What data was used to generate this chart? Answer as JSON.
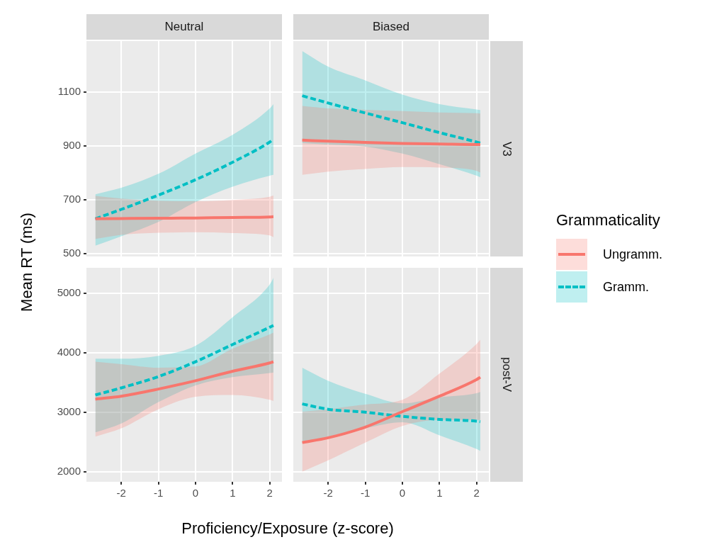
{
  "chart_data": [
    {
      "type": "line",
      "title": "Neutral",
      "ylabel": "Mean RT (ms)",
      "x": [
        -2.7,
        -2,
        -1,
        0,
        1,
        2,
        2.1
      ],
      "xlim": [
        -2.94,
        2.33
      ],
      "xticks": [
        -2,
        -1,
        0,
        1,
        2
      ],
      "ylim": [
        490,
        1290
      ],
      "yticks": [
        500,
        700,
        900,
        1100
      ],
      "tick_labels": "y",
      "grid": true,
      "series": [
        {
          "color": "#f8766d",
          "line_style": "solid",
          "values": [
            630,
            631,
            632,
            633,
            635,
            637,
            638
          ],
          "lower": [
            555,
            570,
            578,
            580,
            577,
            568,
            562
          ],
          "upper": [
            715,
            705,
            697,
            695,
            700,
            712,
            716
          ]
        },
        {
          "color": "#00bfc4",
          "line_style": "dashed",
          "values": [
            630,
            665,
            718,
            775,
            840,
            915,
            925
          ],
          "lower": [
            530,
            565,
            618,
            692,
            749,
            790,
            793
          ],
          "upper": [
            721,
            745,
            797,
            872,
            942,
            1040,
            1056
          ]
        }
      ]
    },
    {
      "type": "line",
      "title": "Biased",
      "annotations": [
        "V3"
      ],
      "legend": "right",
      "legend_title": "Grammaticality",
      "x": [
        -2.7,
        -2,
        -1,
        0,
        1,
        2,
        2.1
      ],
      "xlim": [
        -2.94,
        2.33
      ],
      "xticks": [
        -2,
        -1,
        0,
        1,
        2
      ],
      "ylim": [
        490,
        1290
      ],
      "yticks": [
        500,
        700,
        900,
        1100
      ],
      "tick_labels": false,
      "grid": true,
      "series": [
        {
          "name": "Ungramm.",
          "color": "#f8766d",
          "line_style": "solid",
          "values": [
            922,
            918,
            914,
            910,
            908,
            906,
            906
          ],
          "lower": [
            793,
            805,
            815,
            822,
            820,
            808,
            802
          ],
          "upper": [
            1049,
            1040,
            1035,
            1030,
            1025,
            1022,
            1021
          ]
        },
        {
          "name": "Gramm.",
          "color": "#00bfc4",
          "line_style": "dashed",
          "values": [
            1087,
            1060,
            1023,
            987,
            950,
            915,
            911
          ],
          "lower": [
            911,
            906,
            898,
            872,
            833,
            790,
            784
          ],
          "upper": [
            1253,
            1195,
            1144,
            1091,
            1056,
            1036,
            1034
          ]
        }
      ]
    },
    {
      "type": "line",
      "xlabel": "Proficiency/Exposure (z-score)",
      "x": [
        -2.7,
        -2,
        -1,
        0,
        1,
        2,
        2.1
      ],
      "xlim": [
        -2.94,
        2.33
      ],
      "xticks": [
        -2,
        -1,
        0,
        1,
        2
      ],
      "ylim": [
        1830,
        5430
      ],
      "yticks": [
        2000,
        3000,
        4000,
        5000
      ],
      "grid": true,
      "series": [
        {
          "color": "#f8766d",
          "line_style": "solid",
          "values": [
            3220,
            3270,
            3390,
            3530,
            3690,
            3830,
            3850
          ],
          "lower": [
            2590,
            2730,
            3050,
            3260,
            3290,
            3210,
            3190
          ],
          "upper": [
            3850,
            3810,
            3750,
            3770,
            4070,
            4310,
            4340
          ]
        },
        {
          "color": "#00bfc4",
          "line_style": "dashed",
          "values": [
            3290,
            3410,
            3600,
            3850,
            4140,
            4430,
            4460
          ],
          "lower": [
            2660,
            2810,
            3170,
            3450,
            3590,
            3660,
            3670
          ],
          "upper": [
            3900,
            3900,
            3950,
            4120,
            4600,
            5150,
            5260
          ]
        }
      ]
    },
    {
      "type": "line",
      "annotations": [
        "post-V"
      ],
      "x": [
        -2.7,
        -2,
        -1,
        0,
        1,
        2,
        2.1
      ],
      "xlim": [
        -2.94,
        2.33
      ],
      "xticks": [
        -2,
        -1,
        0,
        1,
        2
      ],
      "ylim": [
        1830,
        5430
      ],
      "yticks": [
        2000,
        3000,
        4000,
        5000
      ],
      "tick_labels": "x",
      "grid": true,
      "series": [
        {
          "color": "#f8766d",
          "line_style": "solid",
          "values": [
            2490,
            2570,
            2750,
            3010,
            3270,
            3550,
            3590
          ],
          "lower": [
            2000,
            2190,
            2490,
            2770,
            2870,
            2870,
            2870
          ],
          "upper": [
            3010,
            3050,
            3130,
            3210,
            3650,
            4150,
            4220
          ]
        },
        {
          "color": "#00bfc4",
          "line_style": "dashed",
          "values": [
            3140,
            3050,
            3000,
            2930,
            2880,
            2850,
            2840
          ],
          "lower": [
            2490,
            2590,
            2730,
            2830,
            2610,
            2380,
            2350
          ],
          "upper": [
            3750,
            3530,
            3310,
            3150,
            3250,
            3320,
            3340
          ]
        }
      ]
    }
  ]
}
